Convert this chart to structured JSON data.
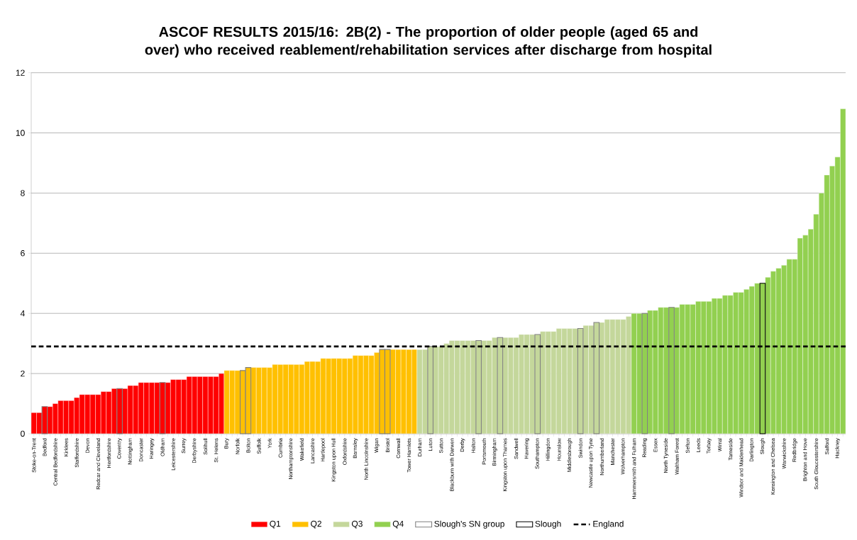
{
  "chart_data": {
    "type": "bar",
    "title": "ASCOF RESULTS 2015/16: 2B(2) - The proportion of older people (aged 65 and over) who received reablement/rehabilitation services after discharge from hospital",
    "categories": [
      "Stoke-on-Trent",
      null,
      "Bedford",
      null,
      "Central Bedfordshire",
      null,
      "Kirklees",
      null,
      "Staffordshire",
      null,
      "Devon",
      null,
      "Redcar and Cleveland",
      null,
      "Hertfordshire",
      null,
      "Coventry",
      null,
      "Nottingham",
      null,
      "Doncaster",
      null,
      "Haringey",
      null,
      "Oldham",
      null,
      "Leicestershire",
      null,
      "Surrey",
      null,
      "Derbyshire",
      null,
      "Solihull",
      null,
      "St. Helens",
      null,
      "Bury",
      null,
      "Norfolk",
      null,
      "Bolton",
      null,
      "Suffolk",
      null,
      "York",
      null,
      "Cumbria",
      null,
      "Northamptonshire",
      null,
      "Wakefield",
      null,
      "Lancashire",
      null,
      "Hartlepool",
      null,
      "Kingston upon Hull",
      null,
      "Oxfordshire",
      null,
      "Barnsley",
      null,
      "North Lincolnshire",
      null,
      "Wigan",
      null,
      "Bristol",
      null,
      "Cornwall",
      null,
      "Tower Hamlets",
      null,
      "Durham",
      null,
      "Luton",
      null,
      "Sutton",
      null,
      "Blackburn with Darwen",
      null,
      "Derby",
      null,
      "Halton",
      null,
      "Portsmouth",
      null,
      "Birmingham",
      null,
      "Kingston upon Thames",
      null,
      "Sandwell",
      null,
      "Havering",
      null,
      "Southampton",
      null,
      "Hillingdon",
      null,
      "Hounslow",
      null,
      "Middlesbrough",
      null,
      "Swindon",
      null,
      "Newcastle upon Tyne",
      null,
      "Northumberland",
      null,
      "Manchester",
      null,
      "Wolverhampton",
      null,
      "Hammersmith and Fulham",
      null,
      "Reading",
      null,
      "Essex",
      null,
      "North Tyneside",
      null,
      "Waltham Forest",
      null,
      "Sefton",
      null,
      "Leeds",
      null,
      "Torbay",
      null,
      "Wirral",
      null,
      "Tameside",
      null,
      "Windsor and Maidenhead",
      null,
      "Darlington",
      null,
      "Slough",
      null,
      "Kensington and Chelsea",
      null,
      "Warwickshire",
      null,
      "Redbridge",
      null,
      "Brighton and Hove",
      null,
      "South Gloucestershire",
      null,
      "Salford",
      null,
      "Hackney",
      null
    ],
    "series": [
      {
        "name": "Q1",
        "color": "#ff0000",
        "values": [
          0.7,
          0.7,
          null,
          0.9,
          1.0,
          1.1,
          1.1,
          1.1,
          1.2,
          1.3,
          1.3,
          1.3,
          1.3,
          1.4,
          1.4,
          1.5,
          null,
          1.5,
          1.6,
          1.6,
          1.7,
          1.7,
          1.7,
          1.7,
          null,
          1.7,
          1.8,
          1.8,
          1.8,
          1.9,
          1.9,
          1.9,
          1.9,
          1.9,
          1.9,
          2.0,
          null,
          null,
          null,
          null,
          null,
          null,
          null,
          null,
          null,
          null,
          null,
          null,
          null,
          null,
          null,
          null,
          null,
          null,
          null,
          null,
          null,
          null,
          null,
          null,
          null,
          null,
          null,
          null,
          null,
          null,
          null,
          null,
          null,
          null,
          null,
          null,
          null,
          null,
          null,
          null,
          null,
          null,
          null,
          null,
          null,
          null,
          null,
          null,
          null,
          null,
          null,
          null,
          null,
          null,
          null,
          null,
          null,
          null,
          null,
          null,
          null,
          null,
          null,
          null,
          null,
          null,
          null,
          null,
          null,
          null,
          null,
          null,
          null,
          null,
          null,
          null,
          null,
          null,
          null,
          null,
          null,
          null,
          null,
          null,
          null,
          null,
          null,
          null,
          null,
          null,
          null,
          null,
          null,
          null,
          null,
          null,
          null,
          null,
          null,
          null,
          null,
          null,
          null,
          null,
          null,
          null,
          null,
          null,
          null,
          null,
          null,
          null,
          null,
          null,
          null,
          null
        ]
      },
      {
        "name": "Q2",
        "color": "#ffc000",
        "values": [
          null,
          null,
          null,
          null,
          null,
          null,
          null,
          null,
          null,
          null,
          null,
          null,
          null,
          null,
          null,
          null,
          null,
          null,
          null,
          null,
          null,
          null,
          null,
          null,
          null,
          null,
          null,
          null,
          null,
          null,
          null,
          null,
          null,
          null,
          null,
          null,
          2.1,
          2.1,
          2.1,
          null,
          null,
          2.2,
          2.2,
          2.2,
          2.2,
          2.3,
          2.3,
          2.3,
          2.3,
          2.3,
          2.3,
          2.4,
          2.4,
          2.4,
          2.5,
          2.5,
          2.5,
          2.5,
          2.5,
          2.5,
          2.6,
          2.6,
          2.6,
          2.6,
          2.7,
          null,
          null,
          2.8,
          2.8,
          2.8,
          2.8,
          2.8,
          null,
          null,
          null,
          null,
          null,
          null,
          null,
          null,
          null,
          null,
          null,
          null,
          null,
          null,
          null,
          null,
          null,
          null,
          null,
          null,
          null,
          null,
          null,
          null,
          null,
          null,
          null,
          null,
          null,
          null,
          null,
          null,
          null,
          null,
          null,
          null,
          null,
          null,
          null,
          null,
          null,
          null,
          null,
          null,
          null,
          null,
          null,
          null,
          null,
          null,
          null,
          null,
          null,
          null,
          null,
          null,
          null,
          null,
          null,
          null,
          null,
          null,
          null,
          null,
          null,
          null,
          null,
          null,
          null,
          null,
          null,
          null,
          null,
          null,
          null,
          null,
          null,
          null,
          null,
          null
        ]
      },
      {
        "name": "Q3",
        "color": "#c4d79b",
        "values": [
          null,
          null,
          null,
          null,
          null,
          null,
          null,
          null,
          null,
          null,
          null,
          null,
          null,
          null,
          null,
          null,
          null,
          null,
          null,
          null,
          null,
          null,
          null,
          null,
          null,
          null,
          null,
          null,
          null,
          null,
          null,
          null,
          null,
          null,
          null,
          null,
          null,
          null,
          null,
          null,
          null,
          null,
          null,
          null,
          null,
          null,
          null,
          null,
          null,
          null,
          null,
          null,
          null,
          null,
          null,
          null,
          null,
          null,
          null,
          null,
          null,
          null,
          null,
          null,
          null,
          null,
          null,
          null,
          null,
          null,
          null,
          null,
          2.8,
          2.8,
          null,
          2.9,
          2.9,
          3.0,
          3.1,
          3.1,
          3.1,
          3.1,
          3.1,
          null,
          3.1,
          3.1,
          3.2,
          null,
          3.2,
          3.2,
          3.2,
          3.3,
          3.3,
          3.3,
          null,
          3.4,
          3.4,
          3.4,
          3.5,
          3.5,
          3.5,
          3.5,
          null,
          3.6,
          3.6,
          null,
          3.7,
          3.8,
          3.8,
          3.8,
          3.8,
          3.9,
          null,
          null,
          null,
          null,
          null,
          null,
          null,
          null,
          null,
          null,
          null,
          null,
          null,
          null,
          null,
          null,
          null,
          null,
          null,
          null,
          null,
          null,
          null,
          null,
          null,
          null,
          null,
          null,
          null,
          null,
          null,
          null,
          null,
          null,
          null,
          null,
          null,
          null,
          null,
          null
        ]
      },
      {
        "name": "Q4",
        "color": "#92d050",
        "values": [
          null,
          null,
          null,
          null,
          null,
          null,
          null,
          null,
          null,
          null,
          null,
          null,
          null,
          null,
          null,
          null,
          null,
          null,
          null,
          null,
          null,
          null,
          null,
          null,
          null,
          null,
          null,
          null,
          null,
          null,
          null,
          null,
          null,
          null,
          null,
          null,
          null,
          null,
          null,
          null,
          null,
          null,
          null,
          null,
          null,
          null,
          null,
          null,
          null,
          null,
          null,
          null,
          null,
          null,
          null,
          null,
          null,
          null,
          null,
          null,
          null,
          null,
          null,
          null,
          null,
          null,
          null,
          null,
          null,
          null,
          null,
          null,
          null,
          null,
          null,
          null,
          null,
          null,
          null,
          null,
          null,
          null,
          null,
          null,
          null,
          null,
          null,
          null,
          null,
          null,
          null,
          null,
          null,
          null,
          null,
          null,
          null,
          null,
          null,
          null,
          null,
          null,
          null,
          null,
          null,
          null,
          null,
          null,
          null,
          null,
          null,
          null,
          4.0,
          4.0,
          null,
          4.1,
          4.1,
          4.2,
          4.2,
          null,
          4.2,
          4.3,
          4.3,
          4.3,
          4.4,
          4.4,
          4.4,
          4.5,
          4.5,
          4.6,
          4.6,
          4.7,
          4.7,
          4.8,
          4.9,
          5.0,
          null,
          5.2,
          5.4,
          5.5,
          5.6,
          5.8,
          5.8,
          6.5,
          6.6,
          6.8,
          7.3,
          8.0,
          8.6,
          8.9,
          9.2,
          10.8
        ]
      },
      {
        "name": "Slough's SN group",
        "color": "#808080",
        "colors": [
          null,
          null,
          "#ff0000",
          null,
          null,
          null,
          null,
          null,
          null,
          null,
          null,
          null,
          null,
          null,
          null,
          null,
          "#ff0000",
          null,
          null,
          null,
          null,
          null,
          null,
          null,
          "#ff0000",
          null,
          null,
          null,
          null,
          null,
          null,
          null,
          null,
          null,
          null,
          null,
          null,
          null,
          null,
          "#ffc000",
          "#ffc000",
          null,
          null,
          null,
          null,
          null,
          null,
          null,
          null,
          null,
          null,
          null,
          null,
          null,
          null,
          null,
          null,
          null,
          null,
          null,
          null,
          null,
          null,
          null,
          null,
          "#ffc000",
          "#ffc000",
          null,
          null,
          null,
          null,
          null,
          null,
          null,
          "#c4d79b",
          null,
          null,
          null,
          null,
          null,
          null,
          null,
          null,
          "#c4d79b",
          null,
          null,
          null,
          "#c4d79b",
          null,
          null,
          null,
          null,
          null,
          null,
          "#c4d79b",
          null,
          null,
          null,
          null,
          null,
          null,
          null,
          "#c4d79b",
          null,
          null,
          "#c4d79b",
          null,
          null,
          null,
          null,
          null,
          null,
          null,
          null,
          "#92d050",
          null,
          null,
          null,
          null,
          "#92d050",
          null,
          null,
          null,
          null,
          null,
          null,
          null,
          null,
          null,
          null,
          null,
          null,
          null,
          null,
          null,
          null,
          null,
          null,
          null,
          null,
          null,
          null,
          null,
          null,
          null,
          null,
          null,
          null,
          null,
          null,
          null,
          null
        ],
        "values": [
          null,
          null,
          0.9,
          null,
          null,
          null,
          null,
          null,
          null,
          null,
          null,
          null,
          null,
          null,
          null,
          null,
          1.5,
          null,
          null,
          null,
          null,
          null,
          null,
          null,
          1.7,
          null,
          null,
          null,
          null,
          null,
          null,
          null,
          null,
          null,
          null,
          null,
          null,
          null,
          null,
          2.1,
          2.2,
          null,
          null,
          null,
          null,
          null,
          null,
          null,
          null,
          null,
          null,
          null,
          null,
          null,
          null,
          null,
          null,
          null,
          null,
          null,
          null,
          null,
          null,
          null,
          null,
          2.8,
          2.8,
          null,
          null,
          null,
          null,
          null,
          null,
          null,
          2.9,
          null,
          null,
          null,
          null,
          null,
          null,
          null,
          null,
          3.1,
          null,
          null,
          null,
          3.2,
          null,
          null,
          null,
          null,
          null,
          null,
          3.3,
          null,
          null,
          null,
          null,
          null,
          null,
          null,
          3.5,
          null,
          null,
          3.7,
          null,
          null,
          null,
          null,
          null,
          null,
          null,
          null,
          4.0,
          null,
          null,
          null,
          null,
          4.2,
          null,
          null,
          null,
          null,
          null,
          null,
          null,
          null,
          null,
          null,
          null,
          null,
          null,
          null,
          null,
          null,
          null,
          null,
          null,
          null,
          null,
          null,
          null,
          null,
          null,
          null,
          null,
          null,
          null,
          null,
          null,
          null
        ]
      },
      {
        "name": "Slough",
        "color": "#000000",
        "colors": [
          null,
          null,
          null,
          null,
          null,
          null,
          null,
          null,
          null,
          null,
          null,
          null,
          null,
          null,
          null,
          null,
          null,
          null,
          null,
          null,
          null,
          null,
          null,
          null,
          null,
          null,
          null,
          null,
          null,
          null,
          null,
          null,
          null,
          null,
          null,
          null,
          null,
          null,
          null,
          null,
          null,
          null,
          null,
          null,
          null,
          null,
          null,
          null,
          null,
          null,
          null,
          null,
          null,
          null,
          null,
          null,
          null,
          null,
          null,
          null,
          null,
          null,
          null,
          null,
          null,
          null,
          null,
          null,
          null,
          null,
          null,
          null,
          null,
          null,
          null,
          null,
          null,
          null,
          null,
          null,
          null,
          null,
          null,
          null,
          null,
          null,
          null,
          null,
          null,
          null,
          null,
          null,
          null,
          null,
          null,
          null,
          null,
          null,
          null,
          null,
          null,
          null,
          null,
          null,
          null,
          null,
          null,
          null,
          null,
          null,
          null,
          null,
          null,
          null,
          null,
          null,
          null,
          null,
          null,
          null,
          null,
          null,
          null,
          null,
          null,
          null,
          null,
          null,
          null,
          null,
          null,
          null,
          null,
          null,
          null,
          null,
          "#92d050",
          null,
          null,
          null,
          null,
          null,
          null,
          null,
          null,
          null,
          null,
          null,
          null,
          null,
          null,
          null
        ],
        "values": [
          null,
          null,
          null,
          null,
          null,
          null,
          null,
          null,
          null,
          null,
          null,
          null,
          null,
          null,
          null,
          null,
          null,
          null,
          null,
          null,
          null,
          null,
          null,
          null,
          null,
          null,
          null,
          null,
          null,
          null,
          null,
          null,
          null,
          null,
          null,
          null,
          null,
          null,
          null,
          null,
          null,
          null,
          null,
          null,
          null,
          null,
          null,
          null,
          null,
          null,
          null,
          null,
          null,
          null,
          null,
          null,
          null,
          null,
          null,
          null,
          null,
          null,
          null,
          null,
          null,
          null,
          null,
          null,
          null,
          null,
          null,
          null,
          null,
          null,
          null,
          null,
          null,
          null,
          null,
          null,
          null,
          null,
          null,
          null,
          null,
          null,
          null,
          null,
          null,
          null,
          null,
          null,
          null,
          null,
          null,
          null,
          null,
          null,
          null,
          null,
          null,
          null,
          null,
          null,
          null,
          null,
          null,
          null,
          null,
          null,
          null,
          null,
          null,
          null,
          null,
          null,
          null,
          null,
          null,
          null,
          null,
          null,
          null,
          null,
          null,
          null,
          null,
          null,
          null,
          null,
          null,
          null,
          null,
          null,
          null,
          null,
          5.0,
          null,
          null,
          null,
          null,
          null,
          null,
          null,
          null,
          null,
          null,
          null,
          null,
          null,
          null,
          null
        ]
      }
    ],
    "ylim": [
      0,
      12
    ],
    "yticks": [
      0,
      2,
      4,
      6,
      8,
      10,
      12
    ],
    "grid": "y",
    "legend": "bottom",
    "ref_lines": [
      {
        "axis": "y",
        "value": 2.9,
        "label": "England",
        "color": "#000000",
        "line_style": "dashed"
      }
    ]
  }
}
